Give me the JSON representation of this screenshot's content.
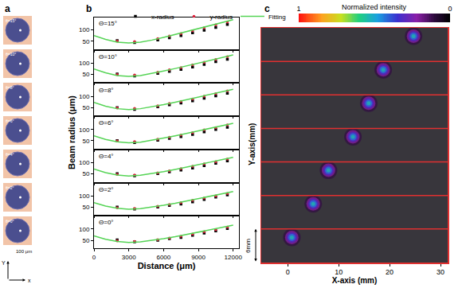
{
  "chart_data": [
    {
      "label": "a",
      "type": "image_strip",
      "labels": [
        "θ=15°",
        "θ=10°",
        "θ=8°",
        "θ=6°",
        "θ=4°",
        "θ=2°",
        "θ=0°"
      ],
      "scale_label": "100 μm",
      "axis_labels": {
        "x": "x",
        "y": "Y"
      }
    },
    {
      "label": "b",
      "type": "line",
      "xlabel": "Distance (μm)",
      "ylabel": "Beam radius (μm)",
      "xlim": [
        0,
        12500
      ],
      "xticks": [
        0,
        3000,
        6000,
        9000,
        12000
      ],
      "ylim": [
        15,
        155
      ],
      "yticks": [
        50,
        100
      ],
      "grid": false,
      "legend": "top",
      "panels": [
        {
          "title": "Θ=15°",
          "series": [
            {
              "name": "x-radius",
              "type": "scatter",
              "marker": "square",
              "color": "#000000",
              "x": [
                2000,
                3500,
                5500,
                6500,
                7500,
                8500,
                9500,
                10500,
                11500
              ],
              "values": [
                53,
                44,
                55,
                65,
                75,
                87,
                99,
                111,
                124
              ]
            },
            {
              "name": "y-radius",
              "type": "scatter",
              "marker": "circle",
              "color": "#e0203c",
              "x": [
                2000,
                3500,
                5500,
                6500,
                7500,
                8500,
                9500,
                10500,
                11500
              ],
              "values": [
                50,
                48,
                62,
                73,
                84,
                96,
                109,
                122,
                135
              ]
            },
            {
              "name": "Fitting",
              "type": "line",
              "line_style": "solid",
              "color": "#55d455",
              "x": [
                0,
                1000,
                2000,
                3000,
                4000,
                5000,
                6000,
                7000,
                8000,
                9000,
                10000,
                11000,
                12000
              ],
              "values": [
                75,
                58,
                46,
                42,
                46,
                55,
                67,
                80,
                93,
                106,
                119,
                132,
                145
              ]
            }
          ]
        },
        {
          "title": "Θ=10°",
          "series": [
            {
              "name": "x-radius",
              "type": "scatter",
              "marker": "square",
              "color": "#000000",
              "x": [
                2000,
                3500,
                5500,
                6500,
                7500,
                8500,
                9500,
                10500,
                11500
              ],
              "values": [
                52,
                43,
                54,
                63,
                72,
                83,
                94,
                106,
                117
              ]
            },
            {
              "name": "y-radius",
              "type": "scatter",
              "marker": "circle",
              "color": "#e0203c",
              "x": [
                2000,
                3500,
                5500,
                6500,
                7500,
                8500,
                9500,
                10500,
                11500
              ],
              "values": [
                49,
                47,
                60,
                70,
                80,
                92,
                104,
                116,
                128
              ]
            },
            {
              "name": "Fitting",
              "type": "line",
              "line_style": "solid",
              "color": "#55d455",
              "x": [
                0,
                1000,
                2000,
                3000,
                4000,
                5000,
                6000,
                7000,
                8000,
                9000,
                10000,
                11000,
                12000
              ],
              "values": [
                74,
                57,
                45,
                41,
                45,
                54,
                65,
                76,
                88,
                100,
                112,
                124,
                136
              ]
            }
          ]
        },
        {
          "title": "Θ=8°",
          "series": [
            {
              "name": "x-radius",
              "type": "scatter",
              "marker": "square",
              "color": "#000000",
              "x": [
                2000,
                3500,
                5500,
                6500,
                7500,
                8500,
                9500,
                10500,
                11500
              ],
              "values": [
                50,
                42,
                53,
                62,
                70,
                80,
                91,
                102,
                113
              ]
            },
            {
              "name": "y-radius",
              "type": "scatter",
              "marker": "circle",
              "color": "#e0203c",
              "x": [
                2000,
                3500,
                5500,
                6500,
                7500,
                8500,
                9500,
                10500,
                11500
              ],
              "values": [
                48,
                46,
                58,
                68,
                77,
                88,
                100,
                112,
                124
              ]
            },
            {
              "name": "Fitting",
              "type": "line",
              "line_style": "solid",
              "color": "#55d455",
              "x": [
                0,
                1000,
                2000,
                3000,
                4000,
                5000,
                6000,
                7000,
                8000,
                9000,
                10000,
                11000,
                12000
              ],
              "values": [
                73,
                56,
                45,
                41,
                45,
                53,
                63,
                74,
                85,
                97,
                108,
                120,
                131
              ]
            }
          ]
        },
        {
          "title": "Θ=6°",
          "series": [
            {
              "name": "x-radius",
              "type": "scatter",
              "marker": "square",
              "color": "#000000",
              "x": [
                2000,
                3500,
                5500,
                6500,
                7500,
                8500,
                9500,
                10500,
                11500
              ],
              "values": [
                51,
                42,
                52,
                60,
                68,
                78,
                89,
                100,
                110
              ]
            },
            {
              "name": "y-radius",
              "type": "scatter",
              "marker": "circle",
              "color": "#e0203c",
              "x": [
                2000,
                3500,
                5500,
                6500,
                7500,
                8500,
                9500,
                10500,
                11500
              ],
              "values": [
                49,
                46,
                57,
                66,
                75,
                86,
                98,
                108,
                120
              ]
            },
            {
              "name": "Fitting",
              "type": "line",
              "line_style": "solid",
              "color": "#55d455",
              "x": [
                0,
                1000,
                2000,
                3000,
                4000,
                5000,
                6000,
                7000,
                8000,
                9000,
                10000,
                11000,
                12000
              ],
              "values": [
                72,
                56,
                45,
                41,
                44,
                52,
                62,
                72,
                83,
                94,
                105,
                116,
                127
              ]
            }
          ]
        },
        {
          "title": "Θ=4°",
          "series": [
            {
              "name": "x-radius",
              "type": "scatter",
              "marker": "square",
              "color": "#000000",
              "x": [
                2000,
                3500,
                5500,
                6500,
                7500,
                8500,
                9500,
                10500,
                11500
              ],
              "values": [
                51,
                42,
                51,
                59,
                67,
                76,
                87,
                97,
                108
              ]
            },
            {
              "name": "y-radius",
              "type": "scatter",
              "marker": "circle",
              "color": "#e0203c",
              "x": [
                2000,
                3500,
                5500,
                6500,
                7500,
                8500,
                9500,
                10500,
                11500
              ],
              "values": [
                48,
                45,
                55,
                64,
                73,
                84,
                95,
                104,
                116
              ]
            },
            {
              "name": "Fitting",
              "type": "line",
              "line_style": "solid",
              "color": "#55d455",
              "x": [
                0,
                1000,
                2000,
                3000,
                4000,
                5000,
                6000,
                7000,
                8000,
                9000,
                10000,
                11000,
                12000
              ],
              "values": [
                72,
                56,
                45,
                41,
                44,
                51,
                60,
                70,
                80,
                91,
                102,
                113,
                124
              ]
            }
          ]
        },
        {
          "title": "Θ=2°",
          "series": [
            {
              "name": "x-radius",
              "type": "scatter",
              "marker": "square",
              "color": "#000000",
              "x": [
                2000,
                3500,
                5500,
                6500,
                7500,
                8500,
                9500,
                10500,
                11500
              ],
              "values": [
                50,
                42,
                50,
                57,
                64,
                73,
                84,
                94,
                104
              ]
            },
            {
              "name": "y-radius",
              "type": "scatter",
              "marker": "circle",
              "color": "#e0203c",
              "x": [
                2000,
                3500,
                5500,
                6500,
                7500,
                8500,
                9500,
                10500,
                11500
              ],
              "values": [
                47,
                44,
                54,
                62,
                70,
                80,
                90,
                100,
                110
              ]
            },
            {
              "name": "Fitting",
              "type": "line",
              "line_style": "solid",
              "color": "#55d455",
              "x": [
                0,
                1000,
                2000,
                3000,
                4000,
                5000,
                6000,
                7000,
                8000,
                9000,
                10000,
                11000,
                12000
              ],
              "values": [
                70,
                55,
                45,
                41,
                43,
                50,
                58,
                67,
                77,
                87,
                98,
                108,
                119
              ]
            }
          ]
        },
        {
          "title": "Θ=0°",
          "series": [
            {
              "name": "x-radius",
              "type": "scatter",
              "marker": "square",
              "color": "#000000",
              "x": [
                2000,
                3500,
                5500,
                6500,
                7500,
                8500,
                9500,
                10500,
                11500
              ],
              "values": [
                52,
                43,
                50,
                57,
                63,
                72,
                82,
                92,
                102
              ]
            },
            {
              "name": "y-radius",
              "type": "scatter",
              "marker": "circle",
              "color": "#e0203c",
              "x": [
                2000,
                3500,
                5500,
                6500,
                7500,
                8500,
                9500,
                10500,
                11500
              ],
              "values": [
                48,
                45,
                53,
                60,
                68,
                78,
                88,
                97,
                108
              ]
            },
            {
              "name": "Fitting",
              "type": "line",
              "line_style": "solid",
              "color": "#55d455",
              "x": [
                0,
                1000,
                2000,
                3000,
                4000,
                5000,
                6000,
                7000,
                8000,
                9000,
                10000,
                11000,
                12000
              ],
              "values": [
                70,
                55,
                45,
                41,
                43,
                49,
                57,
                66,
                76,
                86,
                96,
                106,
                117
              ]
            }
          ]
        }
      ]
    },
    {
      "label": "c",
      "type": "heatmap",
      "xlabel": "X-axis (mm)",
      "ylabel": "Y-axis(mm)",
      "xlim": [
        -5.2,
        31.4
      ],
      "xticks": [
        0,
        10,
        20,
        30
      ],
      "ylim": [
        0,
        42
      ],
      "tick_labels": "x",
      "grid": false,
      "spots": {
        "x": [
          0.8,
          5.0,
          8.0,
          12.8,
          15.9,
          18.75,
          24.7
        ],
        "y": [
          4.5,
          10.5,
          16.5,
          22.5,
          28.5,
          34.5,
          40.5
        ],
        "peak": [
          0.55,
          0.55,
          0.55,
          0.55,
          0.55,
          0.55,
          0.55
        ]
      },
      "colorbar": {
        "title": "Normalized intensity",
        "range": [
          1,
          0
        ],
        "ticks": [
          1,
          0
        ]
      },
      "scale_bar": {
        "label": "6mm",
        "length": 6
      }
    }
  ]
}
